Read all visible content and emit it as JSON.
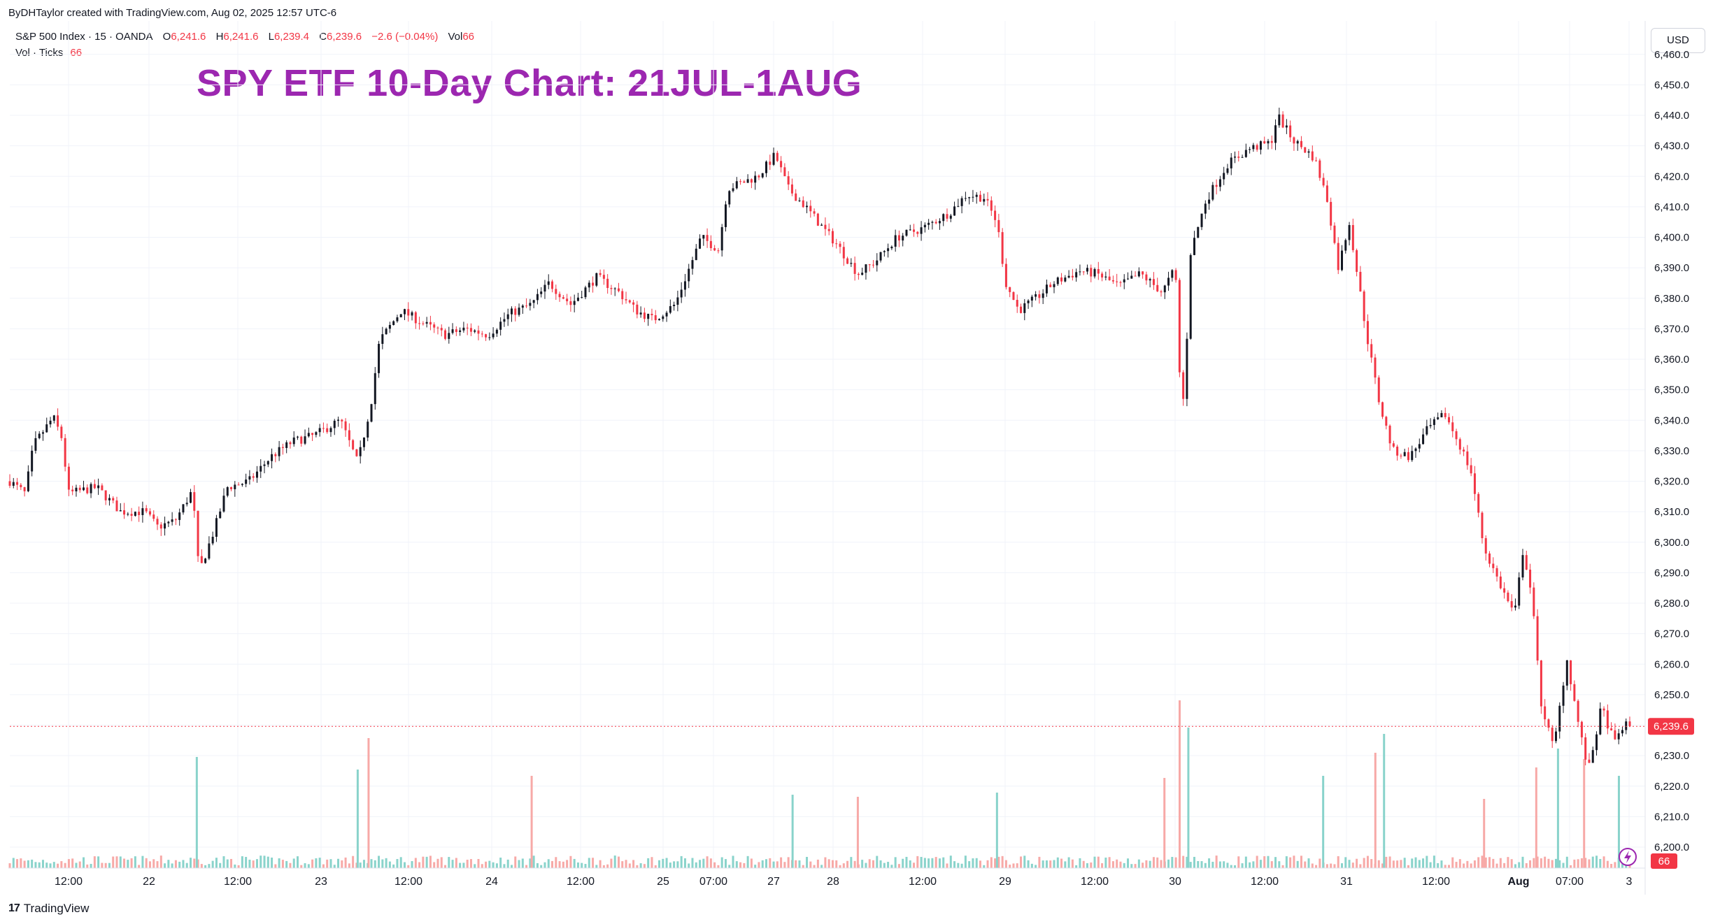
{
  "credit": "ByDHTaylor created with TradingView.com, Aug 02, 2025 12:57 UTC-6",
  "legend": {
    "symbol": "S&P 500 Index · 15 · OANDA",
    "open_label": "O",
    "open": "6,241.6",
    "high_label": "H",
    "high": "6,241.6",
    "low_label": "L",
    "low": "6,239.4",
    "close_label": "C",
    "close": "6,239.6",
    "change": "−2.6 (−0.04%)",
    "vol_label": "Vol",
    "vol": "66",
    "vol_indicator_label": "Vol · Ticks",
    "vol_indicator_value": "66"
  },
  "annotation_title": "SPY ETF 10-Day Chart: 21JUL-1AUG",
  "currency_button": "USD",
  "brand": "TradingView",
  "colors": {
    "up": "#131722",
    "down": "#f23645",
    "vol_up": "#89d3cb",
    "vol_down": "#f7a9a7",
    "annotation": "#9c27b0",
    "last_price_badge": "#f23645"
  },
  "chart_data": {
    "type": "candlestick",
    "timeframe": "15",
    "ylim": [
      6195,
      6465
    ],
    "y_ticks": [
      "6,200.0",
      "6,210.0",
      "6,220.0",
      "6,230.0",
      "6,240.0",
      "6,250.0",
      "6,260.0",
      "6,270.0",
      "6,280.0",
      "6,290.0",
      "6,300.0",
      "6,310.0",
      "6,320.0",
      "6,330.0",
      "6,340.0",
      "6,350.0",
      "6,360.0",
      "6,370.0",
      "6,380.0",
      "6,390.0",
      "6,400.0",
      "6,410.0",
      "6,420.0",
      "6,430.0",
      "6,440.0",
      "6,450.0",
      "6,460.0"
    ],
    "x_ticks": [
      "12:00",
      "22",
      "12:00",
      "23",
      "12:00",
      "24",
      "12:00",
      "25",
      "07:00",
      "27",
      "28",
      "12:00",
      "29",
      "12:00",
      "30",
      "12:00",
      "31",
      "12:00",
      "Aug",
      "07:00",
      "3"
    ],
    "last_price": "6,239.6",
    "last_volume": "66",
    "price_path": [
      [
        0,
        6320
      ],
      [
        0.35,
        6316
      ],
      [
        0.55,
        6332
      ],
      [
        1.0,
        6341
      ],
      [
        1.2,
        6334
      ],
      [
        1.35,
        6316
      ],
      [
        2.0,
        6318
      ],
      [
        2.55,
        6310
      ],
      [
        3.1,
        6310
      ],
      [
        3.4,
        6305
      ],
      [
        3.8,
        6307
      ],
      [
        4.2,
        6317
      ],
      [
        4.35,
        6290
      ],
      [
        4.7,
        6304
      ],
      [
        5.0,
        6318
      ],
      [
        5.5,
        6320
      ],
      [
        6.0,
        6328
      ],
      [
        6.5,
        6333
      ],
      [
        7.0,
        6335
      ],
      [
        7.6,
        6340
      ],
      [
        8.0,
        6326
      ],
      [
        8.3,
        6345
      ],
      [
        8.5,
        6366
      ],
      [
        9.0,
        6376
      ],
      [
        9.6,
        6371
      ],
      [
        10.0,
        6368
      ],
      [
        10.5,
        6370
      ],
      [
        11.0,
        6368
      ],
      [
        11.5,
        6375
      ],
      [
        12.0,
        6378
      ],
      [
        12.4,
        6385
      ],
      [
        12.9,
        6378
      ],
      [
        13.5,
        6387
      ],
      [
        14.0,
        6382
      ],
      [
        14.4,
        6376
      ],
      [
        14.8,
        6373
      ],
      [
        15.3,
        6378
      ],
      [
        15.6,
        6389
      ],
      [
        15.9,
        6400
      ],
      [
        16.3,
        6396
      ],
      [
        16.5,
        6416
      ],
      [
        17.2,
        6420
      ],
      [
        17.6,
        6427
      ],
      [
        17.9,
        6416
      ],
      [
        18.3,
        6410
      ],
      [
        18.7,
        6403
      ],
      [
        19.0,
        6398
      ],
      [
        19.5,
        6388
      ],
      [
        19.9,
        6392
      ],
      [
        20.4,
        6400
      ],
      [
        21.0,
        6403
      ],
      [
        21.6,
        6408
      ],
      [
        22.0,
        6414
      ],
      [
        22.4,
        6413
      ],
      [
        22.7,
        6405
      ],
      [
        22.9,
        6385
      ],
      [
        23.2,
        6376
      ],
      [
        23.6,
        6380
      ],
      [
        24.0,
        6385
      ],
      [
        24.6,
        6389
      ],
      [
        25.0,
        6388
      ],
      [
        25.5,
        6384
      ],
      [
        26.0,
        6388
      ],
      [
        26.5,
        6382
      ],
      [
        26.8,
        6390
      ],
      [
        26.9,
        6355
      ],
      [
        27.0,
        6345
      ],
      [
        27.15,
        6395
      ],
      [
        27.5,
        6412
      ],
      [
        28.0,
        6424
      ],
      [
        28.5,
        6429
      ],
      [
        29.0,
        6431
      ],
      [
        29.15,
        6440
      ],
      [
        29.5,
        6432
      ],
      [
        30.0,
        6426
      ],
      [
        30.3,
        6412
      ],
      [
        30.55,
        6390
      ],
      [
        30.8,
        6405
      ],
      [
        31.2,
        6368
      ],
      [
        31.5,
        6345
      ],
      [
        31.8,
        6330
      ],
      [
        32.2,
        6328
      ],
      [
        32.6,
        6337
      ],
      [
        33.0,
        6342
      ],
      [
        33.4,
        6330
      ],
      [
        33.6,
        6323
      ],
      [
        33.9,
        6298
      ],
      [
        34.3,
        6285
      ],
      [
        34.6,
        6276
      ],
      [
        34.8,
        6298
      ],
      [
        35.0,
        6282
      ],
      [
        35.2,
        6248
      ],
      [
        35.5,
        6232
      ],
      [
        35.8,
        6262
      ],
      [
        36.1,
        6238
      ],
      [
        36.3,
        6225
      ],
      [
        36.6,
        6246
      ],
      [
        36.9,
        6234
      ],
      [
        37.1,
        6240
      ],
      [
        37.25,
        6239.6
      ]
    ],
    "volume_spikes": [
      [
        4.3,
        0.53
      ],
      [
        8.25,
        0.62
      ],
      [
        8.0,
        0.47
      ],
      [
        12.0,
        0.44
      ],
      [
        18.0,
        0.35
      ],
      [
        19.5,
        0.34
      ],
      [
        22.7,
        0.36
      ],
      [
        26.9,
        0.8
      ],
      [
        27.1,
        0.67
      ],
      [
        26.55,
        0.43
      ],
      [
        30.2,
        0.44
      ],
      [
        31.4,
        0.55
      ],
      [
        31.6,
        0.64
      ],
      [
        35.1,
        0.48
      ],
      [
        35.6,
        0.57
      ],
      [
        36.2,
        0.52
      ],
      [
        37.0,
        0.44
      ],
      [
        33.9,
        0.33
      ]
    ]
  }
}
